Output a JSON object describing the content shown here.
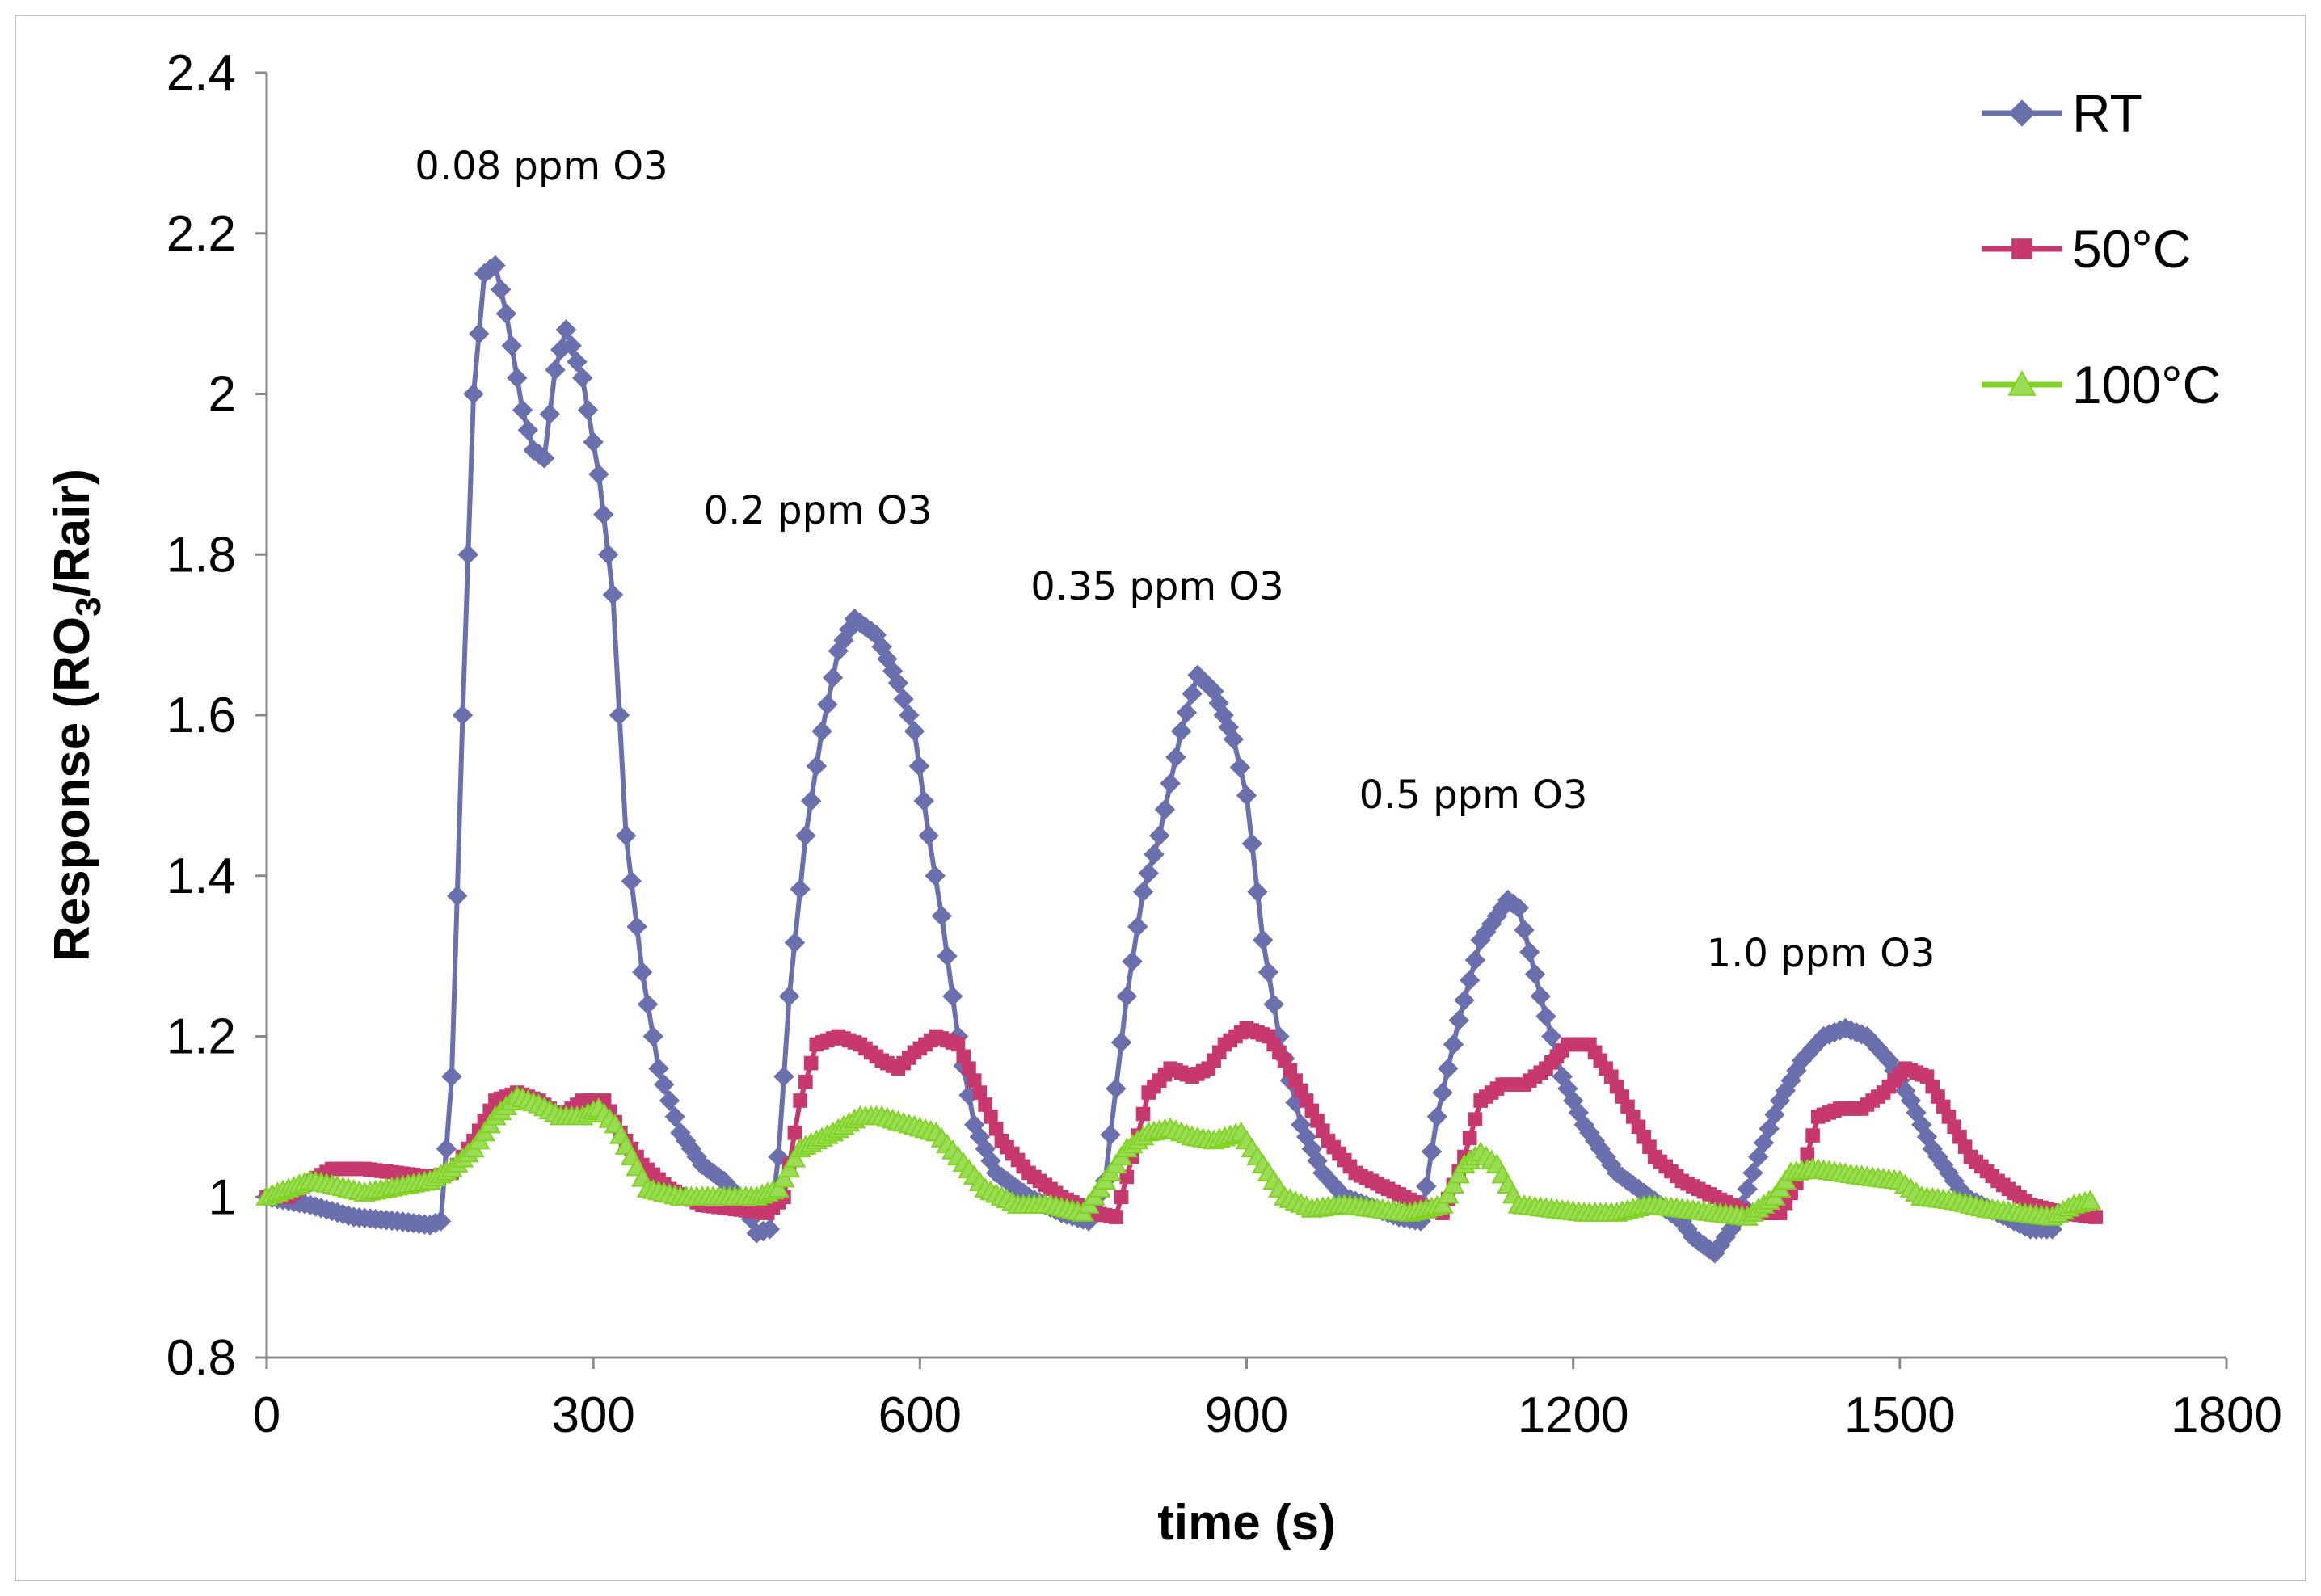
{
  "chart_data": {
    "type": "line",
    "title": "",
    "xlabel": "time (s)",
    "ylabel": {
      "main": "Response (RO",
      "sub": "3",
      "rest": "/Rair)"
    },
    "xlim": [
      0,
      1800
    ],
    "ylim": [
      0.8,
      2.4
    ],
    "xticks": [
      "0",
      "300",
      "600",
      "900",
      "1200",
      "1500",
      "1800"
    ],
    "yticks": [
      "0.8",
      "1",
      "1.2",
      "1.4",
      "1.6",
      "1.8",
      "2",
      "2.2",
      "2.4"
    ],
    "legend_position": "top-right",
    "annotations": [
      {
        "text": "0.08 ppm O3",
        "x": 255,
        "y": 2.15
      },
      {
        "text": "0.2 ppm O3",
        "x": 505,
        "y": 1.72
      },
      {
        "text": "0.35 ppm O3",
        "x": 820,
        "y": 1.62
      },
      {
        "text": "0.5 ppm O3",
        "x": 1110,
        "y": 1.36
      },
      {
        "text": "1.0 ppm O3",
        "x": 1425,
        "y": 1.16
      }
    ],
    "series": [
      {
        "name": "RT",
        "color": "#6a6fae",
        "marker": "diamond",
        "points": [
          [
            0,
            1.0
          ],
          [
            40,
            0.99
          ],
          [
            80,
            0.975
          ],
          [
            120,
            0.97
          ],
          [
            150,
            0.965
          ],
          [
            160,
            0.97
          ],
          [
            170,
            1.15
          ],
          [
            180,
            1.6
          ],
          [
            190,
            2.0
          ],
          [
            200,
            2.15
          ],
          [
            210,
            2.16
          ],
          [
            220,
            2.1
          ],
          [
            235,
            1.98
          ],
          [
            245,
            1.93
          ],
          [
            255,
            1.92
          ],
          [
            265,
            2.03
          ],
          [
            275,
            2.08
          ],
          [
            290,
            2.02
          ],
          [
            305,
            1.9
          ],
          [
            318,
            1.75
          ],
          [
            330,
            1.45
          ],
          [
            345,
            1.28
          ],
          [
            360,
            1.16
          ],
          [
            380,
            1.08
          ],
          [
            400,
            1.04
          ],
          [
            420,
            1.02
          ],
          [
            440,
            0.99
          ],
          [
            450,
            0.955
          ],
          [
            462,
            0.96
          ],
          [
            470,
            1.05
          ],
          [
            480,
            1.25
          ],
          [
            495,
            1.45
          ],
          [
            510,
            1.58
          ],
          [
            525,
            1.68
          ],
          [
            540,
            1.72
          ],
          [
            560,
            1.7
          ],
          [
            580,
            1.64
          ],
          [
            595,
            1.58
          ],
          [
            608,
            1.45
          ],
          [
            620,
            1.35
          ],
          [
            635,
            1.2
          ],
          [
            650,
            1.09
          ],
          [
            670,
            1.03
          ],
          [
            700,
            1.0
          ],
          [
            730,
            0.98
          ],
          [
            755,
            0.97
          ],
          [
            770,
            1.02
          ],
          [
            790,
            1.25
          ],
          [
            805,
            1.38
          ],
          [
            820,
            1.45
          ],
          [
            840,
            1.58
          ],
          [
            855,
            1.65
          ],
          [
            870,
            1.63
          ],
          [
            888,
            1.57
          ],
          [
            900,
            1.5
          ],
          [
            915,
            1.32
          ],
          [
            930,
            1.2
          ],
          [
            950,
            1.09
          ],
          [
            970,
            1.03
          ],
          [
            990,
            1.0
          ],
          [
            1010,
            0.99
          ],
          [
            1040,
            0.975
          ],
          [
            1060,
            0.97
          ],
          [
            1075,
            1.1
          ],
          [
            1095,
            1.22
          ],
          [
            1115,
            1.32
          ],
          [
            1140,
            1.37
          ],
          [
            1150,
            1.36
          ],
          [
            1170,
            1.25
          ],
          [
            1190,
            1.15
          ],
          [
            1210,
            1.09
          ],
          [
            1240,
            1.03
          ],
          [
            1270,
            1.0
          ],
          [
            1300,
            0.97
          ],
          [
            1310,
            0.95
          ],
          [
            1330,
            0.93
          ],
          [
            1350,
            0.97
          ],
          [
            1370,
            1.05
          ],
          [
            1390,
            1.12
          ],
          [
            1410,
            1.17
          ],
          [
            1430,
            1.2
          ],
          [
            1450,
            1.21
          ],
          [
            1470,
            1.2
          ],
          [
            1490,
            1.17
          ],
          [
            1510,
            1.12
          ],
          [
            1530,
            1.06
          ],
          [
            1560,
            1.0
          ],
          [
            1590,
            0.98
          ],
          [
            1620,
            0.96
          ],
          [
            1640,
            0.96
          ]
        ]
      },
      {
        "name": "50°C",
        "color": "#c6386e",
        "marker": "square",
        "points": [
          [
            0,
            1.0
          ],
          [
            20,
            1.0
          ],
          [
            40,
            1.02
          ],
          [
            60,
            1.035
          ],
          [
            90,
            1.035
          ],
          [
            120,
            1.03
          ],
          [
            150,
            1.025
          ],
          [
            170,
            1.03
          ],
          [
            190,
            1.07
          ],
          [
            210,
            1.12
          ],
          [
            230,
            1.13
          ],
          [
            250,
            1.12
          ],
          [
            270,
            1.1
          ],
          [
            290,
            1.12
          ],
          [
            310,
            1.12
          ],
          [
            325,
            1.08
          ],
          [
            345,
            1.04
          ],
          [
            370,
            1.01
          ],
          [
            400,
            0.99
          ],
          [
            430,
            0.985
          ],
          [
            460,
            0.98
          ],
          [
            475,
            1.0
          ],
          [
            490,
            1.12
          ],
          [
            505,
            1.19
          ],
          [
            525,
            1.2
          ],
          [
            545,
            1.19
          ],
          [
            565,
            1.17
          ],
          [
            580,
            1.16
          ],
          [
            595,
            1.18
          ],
          [
            615,
            1.2
          ],
          [
            635,
            1.19
          ],
          [
            655,
            1.13
          ],
          [
            675,
            1.07
          ],
          [
            700,
            1.03
          ],
          [
            730,
            1.0
          ],
          [
            760,
            0.98
          ],
          [
            780,
            0.975
          ],
          [
            795,
            1.05
          ],
          [
            810,
            1.13
          ],
          [
            830,
            1.16
          ],
          [
            850,
            1.15
          ],
          [
            865,
            1.16
          ],
          [
            880,
            1.19
          ],
          [
            900,
            1.21
          ],
          [
            920,
            1.2
          ],
          [
            935,
            1.17
          ],
          [
            955,
            1.12
          ],
          [
            975,
            1.07
          ],
          [
            1000,
            1.03
          ],
          [
            1030,
            1.01
          ],
          [
            1060,
            0.99
          ],
          [
            1080,
            0.98
          ],
          [
            1100,
            1.05
          ],
          [
            1115,
            1.12
          ],
          [
            1135,
            1.14
          ],
          [
            1155,
            1.14
          ],
          [
            1175,
            1.16
          ],
          [
            1195,
            1.19
          ],
          [
            1215,
            1.19
          ],
          [
            1235,
            1.15
          ],
          [
            1255,
            1.1
          ],
          [
            1275,
            1.05
          ],
          [
            1300,
            1.02
          ],
          [
            1330,
            1.0
          ],
          [
            1360,
            0.98
          ],
          [
            1390,
            0.98
          ],
          [
            1410,
            1.03
          ],
          [
            1425,
            1.1
          ],
          [
            1445,
            1.11
          ],
          [
            1465,
            1.11
          ],
          [
            1485,
            1.13
          ],
          [
            1505,
            1.16
          ],
          [
            1525,
            1.15
          ],
          [
            1545,
            1.1
          ],
          [
            1565,
            1.05
          ],
          [
            1590,
            1.02
          ],
          [
            1620,
            0.99
          ],
          [
            1650,
            0.98
          ],
          [
            1680,
            0.975
          ]
        ]
      },
      {
        "name": "100°C",
        "color": "#7fd321",
        "marker": "triangle",
        "points": [
          [
            0,
            1.0
          ],
          [
            20,
            1.01
          ],
          [
            40,
            1.02
          ],
          [
            60,
            1.015
          ],
          [
            90,
            1.005
          ],
          [
            110,
            1.01
          ],
          [
            130,
            1.015
          ],
          [
            150,
            1.02
          ],
          [
            170,
            1.035
          ],
          [
            190,
            1.06
          ],
          [
            210,
            1.1
          ],
          [
            230,
            1.125
          ],
          [
            250,
            1.115
          ],
          [
            270,
            1.1
          ],
          [
            290,
            1.1
          ],
          [
            305,
            1.11
          ],
          [
            320,
            1.09
          ],
          [
            335,
            1.05
          ],
          [
            350,
            1.01
          ],
          [
            380,
            1.0
          ],
          [
            420,
            1.0
          ],
          [
            450,
            1.0
          ],
          [
            470,
            1.01
          ],
          [
            490,
            1.06
          ],
          [
            520,
            1.08
          ],
          [
            545,
            1.1
          ],
          [
            565,
            1.1
          ],
          [
            590,
            1.09
          ],
          [
            615,
            1.08
          ],
          [
            635,
            1.05
          ],
          [
            660,
            1.01
          ],
          [
            690,
            0.99
          ],
          [
            720,
            0.99
          ],
          [
            750,
            0.98
          ],
          [
            770,
            1.02
          ],
          [
            790,
            1.06
          ],
          [
            810,
            1.08
          ],
          [
            830,
            1.085
          ],
          [
            850,
            1.075
          ],
          [
            870,
            1.07
          ],
          [
            895,
            1.08
          ],
          [
            915,
            1.04
          ],
          [
            935,
            1.0
          ],
          [
            960,
            0.985
          ],
          [
            990,
            0.99
          ],
          [
            1020,
            0.985
          ],
          [
            1050,
            0.98
          ],
          [
            1080,
            0.99
          ],
          [
            1100,
            1.04
          ],
          [
            1115,
            1.055
          ],
          [
            1130,
            1.04
          ],
          [
            1150,
            0.99
          ],
          [
            1180,
            0.985
          ],
          [
            1210,
            0.98
          ],
          [
            1240,
            0.98
          ],
          [
            1270,
            0.99
          ],
          [
            1300,
            0.985
          ],
          [
            1330,
            0.98
          ],
          [
            1360,
            0.975
          ],
          [
            1385,
            1.0
          ],
          [
            1400,
            1.03
          ],
          [
            1420,
            1.035
          ],
          [
            1445,
            1.03
          ],
          [
            1470,
            1.025
          ],
          [
            1500,
            1.02
          ],
          [
            1520,
            1.0
          ],
          [
            1550,
            0.995
          ],
          [
            1580,
            0.985
          ],
          [
            1610,
            0.98
          ],
          [
            1640,
            0.975
          ],
          [
            1660,
            0.99
          ],
          [
            1675,
            0.995
          ]
        ]
      }
    ]
  }
}
